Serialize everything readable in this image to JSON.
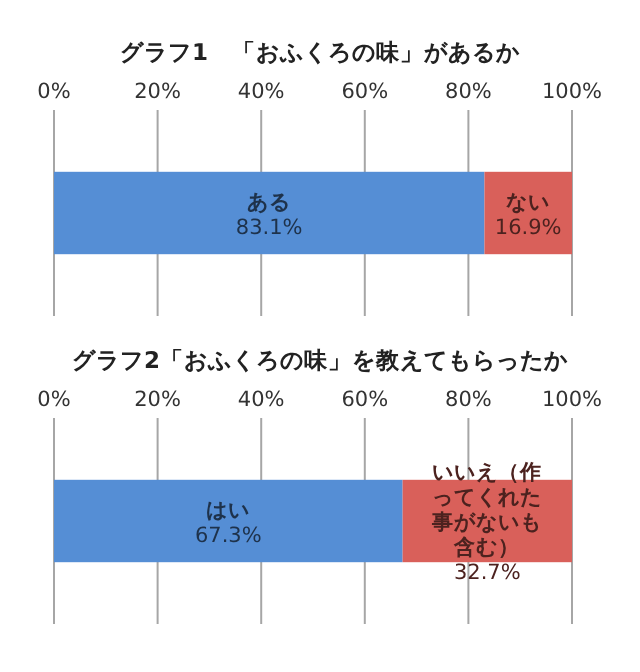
{
  "chart_data": [
    {
      "type": "bar",
      "orientation": "horizontal",
      "stacked": true,
      "title": "グラフ1　「おふくろの味」があるか",
      "categories": [
        null
      ],
      "series": [
        {
          "name": "ある",
          "color": "#558ed5",
          "values": [
            83.1
          ],
          "value_labels": [
            "83.1%"
          ]
        },
        {
          "name": "ない",
          "color": "#d9605a",
          "values": [
            16.9
          ],
          "value_labels": [
            "16.9%"
          ]
        }
      ],
      "xlim": [
        0,
        100
      ],
      "xticks": [
        {
          "value": 0,
          "label": "0%"
        },
        {
          "value": 20,
          "label": "20%"
        },
        {
          "value": 40,
          "label": "40%"
        },
        {
          "value": 60,
          "label": "60%"
        },
        {
          "value": 80,
          "label": "80%"
        },
        {
          "value": 100,
          "label": "100%"
        }
      ],
      "grid": "x",
      "tick_labels": "x"
    },
    {
      "type": "bar",
      "orientation": "horizontal",
      "stacked": true,
      "title": "グラフ2「おふくろの味」を教えてもらったか",
      "categories": [
        null
      ],
      "series": [
        {
          "name": "はい",
          "color": "#558ed5",
          "values": [
            67.3
          ],
          "value_labels": [
            "67.3%"
          ]
        },
        {
          "name": "いいえ（作ってくれた事がないも含む）",
          "color": "#d9605a",
          "values": [
            32.7
          ],
          "value_labels": [
            "32.7%"
          ]
        }
      ],
      "xlim": [
        0,
        100
      ],
      "xticks": [
        {
          "value": 0,
          "label": "0%"
        },
        {
          "value": 20,
          "label": "20%"
        },
        {
          "value": 40,
          "label": "40%"
        },
        {
          "value": 60,
          "label": "60%"
        },
        {
          "value": 80,
          "label": "80%"
        },
        {
          "value": 100,
          "label": "100%"
        }
      ],
      "grid": "x",
      "tick_labels": "x"
    }
  ]
}
